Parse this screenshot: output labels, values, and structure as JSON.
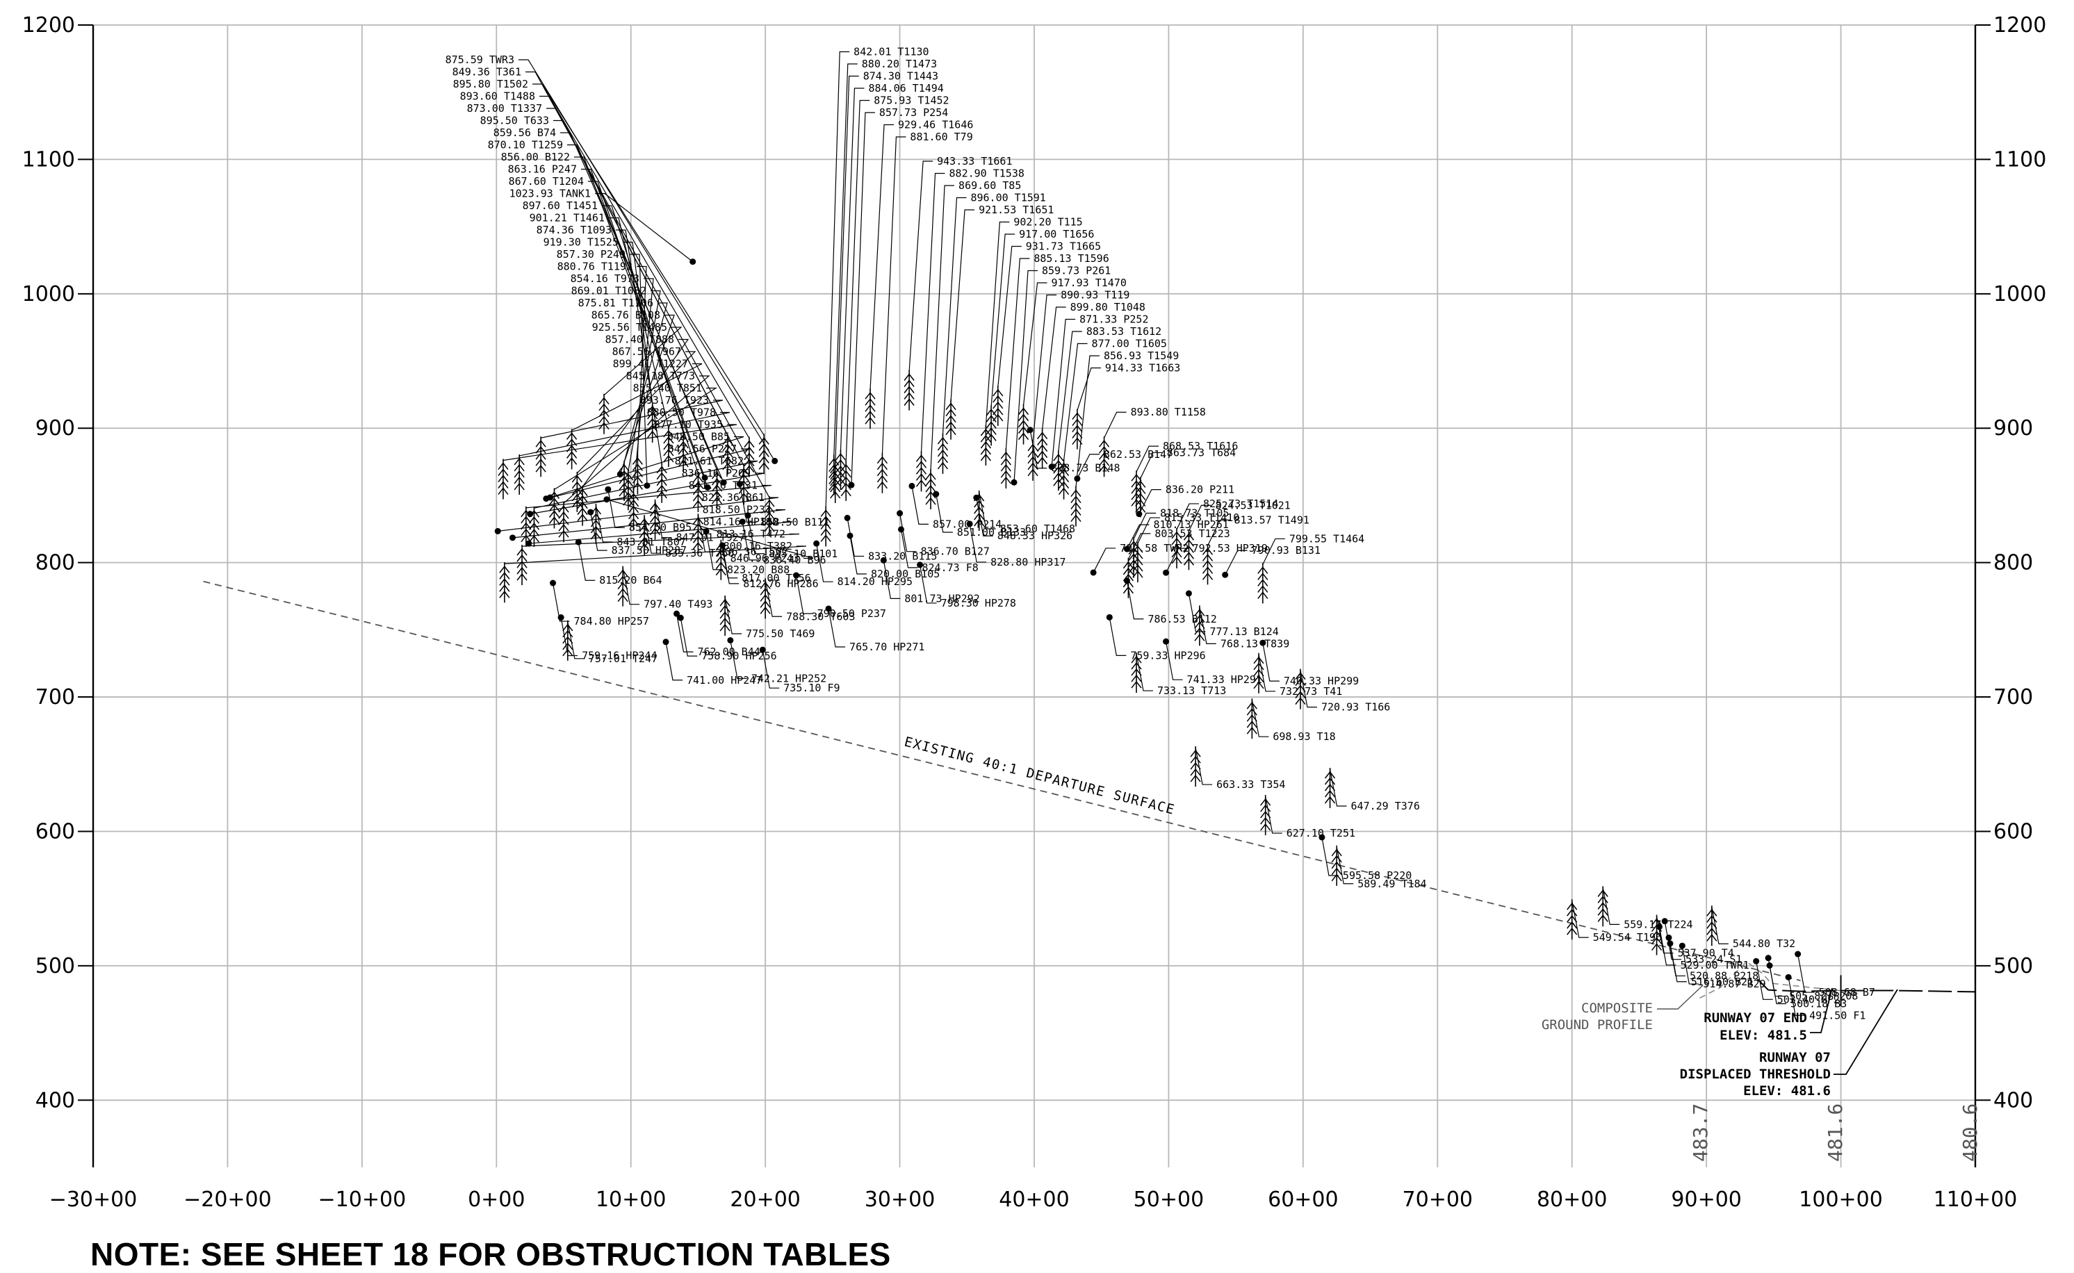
{
  "chart_data": {
    "type": "scatter",
    "x_unit": "station",
    "y_unit": "elevation (ft)",
    "xlim": [
      -3000,
      11000
    ],
    "ylim": [
      350,
      1200
    ],
    "x_ticks": [
      "−30+00",
      "−20+00",
      "−10+00",
      "0+00",
      "10+00",
      "20+00",
      "30+00",
      "40+00",
      "50+00",
      "60+00",
      "70+00",
      "80+00",
      "90+00",
      "100+00",
      "110+00"
    ],
    "y_ticks": [
      "400",
      "500",
      "600",
      "700",
      "800",
      "900",
      "1000",
      "1100",
      "1200"
    ],
    "obstructions": [
      {
        "label": "814.20 HP295",
        "x": 2380,
        "y": 814.2
      },
      {
        "label": "842.01 T1130",
        "x": 2450,
        "y": 842
      },
      {
        "label": "880.20 T1473",
        "x": 2510,
        "y": 880.2
      },
      {
        "label": "874.30 T1443",
        "x": 2520,
        "y": 874.3
      },
      {
        "label": "884.06 T1494",
        "x": 2560,
        "y": 884
      },
      {
        "label": "875.93 T1452",
        "x": 2600,
        "y": 875.9
      },
      {
        "label": "857.73 P254",
        "x": 2640,
        "y": 857.7
      },
      {
        "label": "929.46 T1646",
        "x": 2780,
        "y": 929.5
      },
      {
        "label": "881.60 T79",
        "x": 2870,
        "y": 881.6
      },
      {
        "label": "836.70 B127",
        "x": 3000,
        "y": 836.7
      },
      {
        "label": "943.33 T1661",
        "x": 3070,
        "y": 943.3
      },
      {
        "label": "882.90 T1538",
        "x": 3160,
        "y": 882.9
      },
      {
        "label": "869.60 T85",
        "x": 3230,
        "y": 869.6
      },
      {
        "label": "896.00 T1591",
        "x": 3320,
        "y": 896
      },
      {
        "label": "921.53 T1651",
        "x": 3380,
        "y": 921.5
      },
      {
        "label": "902.20 T115",
        "x": 3640,
        "y": 902.2
      },
      {
        "label": "917.00 T1656",
        "x": 3680,
        "y": 917
      },
      {
        "label": "931.73 T1665",
        "x": 3730,
        "y": 931.7
      },
      {
        "label": "885.13 T1596",
        "x": 3790,
        "y": 885.1
      },
      {
        "label": "859.73 P261",
        "x": 3850,
        "y": 859.7
      },
      {
        "label": "917.93 T1470",
        "x": 3920,
        "y": 917.9
      },
      {
        "label": "890.93 T119",
        "x": 3990,
        "y": 890.9
      },
      {
        "label": "899.80 T1048",
        "x": 4060,
        "y": 899.8
      },
      {
        "label": "871.33 P252",
        "x": 4130,
        "y": 871.3
      },
      {
        "label": "883.53 T1612",
        "x": 4180,
        "y": 883.5
      },
      {
        "label": "877.00 T1605",
        "x": 4220,
        "y": 877
      },
      {
        "label": "856.93 T1549",
        "x": 4310,
        "y": 856.9
      },
      {
        "label": "914.33 T1663",
        "x": 4320,
        "y": 914.3
      },
      {
        "label": "875.59 TWR3",
        "x": 2070,
        "y": 875.6
      },
      {
        "label": "849.36 T361",
        "x": 2030,
        "y": 849.4
      },
      {
        "label": "895.80 T1502",
        "x": 1990,
        "y": 895.8
      },
      {
        "label": "893.60 T1488",
        "x": 1880,
        "y": 893.6
      },
      {
        "label": "873.00 T1337",
        "x": 1840,
        "y": 873
      },
      {
        "label": "895.50 T633",
        "x": 1720,
        "y": 895.5
      },
      {
        "label": "859.56 B74",
        "x": 1690,
        "y": 859.6
      },
      {
        "label": "870.10 T1259",
        "x": 1640,
        "y": 870.1
      },
      {
        "label": "856.00 B122",
        "x": 1570,
        "y": 856
      },
      {
        "label": "863.16 P247",
        "x": 1550,
        "y": 863.2
      },
      {
        "label": "867.60 T1204",
        "x": 1500,
        "y": 867.6
      },
      {
        "label": "1023.93 TANK1",
        "x": 1460,
        "y": 1023.9
      },
      {
        "label": "897.60 T1451",
        "x": 1390,
        "y": 897.6
      },
      {
        "label": "901.21 T1461",
        "x": 1280,
        "y": 901.2
      },
      {
        "label": "874.36 T1093",
        "x": 1230,
        "y": 874.4
      },
      {
        "label": "919.30 T1525",
        "x": 1160,
        "y": 919.3
      },
      {
        "label": "857.30 P249",
        "x": 1120,
        "y": 857.3
      },
      {
        "label": "880.76 T1192",
        "x": 1050,
        "y": 880.8
      },
      {
        "label": "854.16 T973",
        "x": 1020,
        "y": 854.2
      },
      {
        "label": "869.01 T1082",
        "x": 980,
        "y": 869
      },
      {
        "label": "875.81 T1106",
        "x": 950,
        "y": 875.8
      },
      {
        "label": "865.76 B108",
        "x": 920,
        "y": 865.8
      },
      {
        "label": "925.56 T1485",
        "x": 800,
        "y": 925.6
      },
      {
        "label": "857.40 T888",
        "x": 640,
        "y": 857.4
      },
      {
        "label": "867.56 T967",
        "x": 600,
        "y": 867.6
      },
      {
        "label": "899.41 T1227",
        "x": 560,
        "y": 899.4
      },
      {
        "label": "845.18 T773",
        "x": 500,
        "y": 845.2
      },
      {
        "label": "855.40 T851",
        "x": 430,
        "y": 855.4
      },
      {
        "label": "893.76 T923",
        "x": 330,
        "y": 893.8
      },
      {
        "label": "880.50 T978",
        "x": 170,
        "y": 880.5
      },
      {
        "label": "877.10 T935",
        "x": 50,
        "y": 877.1
      },
      {
        "label": "848.50 B85",
        "x": 400,
        "y": 848.5
      },
      {
        "label": "847.56 P227",
        "x": 370,
        "y": 847.6
      },
      {
        "label": "841.61 T682",
        "x": 280,
        "y": 841.6
      },
      {
        "label": "836.16 P209",
        "x": 250,
        "y": 836.2
      },
      {
        "label": "841.76 T631",
        "x": 220,
        "y": 841.8
      },
      {
        "label": "823.36 B61",
        "x": 10,
        "y": 823.4
      },
      {
        "label": "818.50 P231",
        "x": 120,
        "y": 818.5
      },
      {
        "label": "814.16 HP190",
        "x": 240,
        "y": 814.2
      },
      {
        "label": "813.16 T472",
        "x": 190,
        "y": 813.2
      },
      {
        "label": "800.16 T382",
        "x": 60,
        "y": 800.2
      },
      {
        "label": "846.96 P243",
        "x": 820,
        "y": 847
      },
      {
        "label": "784.80 HP257",
        "x": 420,
        "y": 784.8
      },
      {
        "label": "815.20 B64",
        "x": 610,
        "y": 815.2
      },
      {
        "label": "759.16 HP244",
        "x": 480,
        "y": 759.2
      },
      {
        "label": "757.01 T247",
        "x": 530,
        "y": 757
      },
      {
        "label": "837.50 HP287",
        "x": 700,
        "y": 837.5
      },
      {
        "label": "843.81 T807",
        "x": 740,
        "y": 843.8
      },
      {
        "label": "854.50 B95",
        "x": 830,
        "y": 854.5
      },
      {
        "label": "797.40 T493",
        "x": 940,
        "y": 797.4
      },
      {
        "label": "835.36 T766",
        "x": 1100,
        "y": 835.4
      },
      {
        "label": "847.01 T927",
        "x": 1180,
        "y": 847
      },
      {
        "label": "741.00 HP247",
        "x": 1260,
        "y": 741
      },
      {
        "label": "762.00 B44",
        "x": 1340,
        "y": 762
      },
      {
        "label": "758.90 HP256",
        "x": 1370,
        "y": 758.9
      },
      {
        "label": "836.36 T502",
        "x": 1500,
        "y": 836.4
      },
      {
        "label": "823.20 B88",
        "x": 1560,
        "y": 823.2
      },
      {
        "label": "817.00 T756",
        "x": 1670,
        "y": 817
      },
      {
        "label": "742.21 HP252",
        "x": 1740,
        "y": 742.2
      },
      {
        "label": "775.50 T469",
        "x": 1700,
        "y": 775.5
      },
      {
        "label": "812.76 HP286",
        "x": 1680,
        "y": 812.8
      },
      {
        "label": "735.10 F9",
        "x": 1980,
        "y": 735.1
      },
      {
        "label": "858.50 B111",
        "x": 1810,
        "y": 858.5
      },
      {
        "label": "830.40 B96",
        "x": 1830,
        "y": 830.4
      },
      {
        "label": "788.30 T603",
        "x": 2000,
        "y": 788.3
      },
      {
        "label": "835.10 B101",
        "x": 1870,
        "y": 835.1
      },
      {
        "label": "790.50 P237",
        "x": 2230,
        "y": 790.5
      },
      {
        "label": "765.70 HP271",
        "x": 2470,
        "y": 765.7
      },
      {
        "label": "820.00 B105",
        "x": 2630,
        "y": 820
      },
      {
        "label": "833.20 B115",
        "x": 2610,
        "y": 833.2
      },
      {
        "label": "801.73 HP292",
        "x": 2880,
        "y": 801.7
      },
      {
        "label": "824.73 F8",
        "x": 3010,
        "y": 824.7
      },
      {
        "label": "798.30 HP278",
        "x": 3150,
        "y": 798.3
      },
      {
        "label": "857.00 P214",
        "x": 3090,
        "y": 857
      },
      {
        "label": "851.00 B133",
        "x": 3270,
        "y": 851
      },
      {
        "label": "828.80 HP317",
        "x": 3520,
        "y": 828.8
      },
      {
        "label": "848.33 HP326",
        "x": 3570,
        "y": 848.3
      },
      {
        "label": "853.60 T1468",
        "x": 3590,
        "y": 853.6
      },
      {
        "label": "898.73 B148",
        "x": 3970,
        "y": 898.7
      },
      {
        "label": "792.58 TWR2",
        "x": 4440,
        "y": 792.6
      },
      {
        "label": "759.33 HP296",
        "x": 4560,
        "y": 759.3
      },
      {
        "label": "862.53 B147",
        "x": 4320,
        "y": 862.5
      },
      {
        "label": "893.80 T1158",
        "x": 4520,
        "y": 893.8
      },
      {
        "label": "786.53 B112",
        "x": 4690,
        "y": 786.5
      },
      {
        "label": "803.53 T1223",
        "x": 4700,
        "y": 803.5
      },
      {
        "label": "868.53 T1616",
        "x": 4760,
        "y": 868.5
      },
      {
        "label": "863.73 T684",
        "x": 4790,
        "y": 863.7
      },
      {
        "label": "836.20 P211",
        "x": 4780,
        "y": 836.2
      },
      {
        "label": "810.13 HP261",
        "x": 4690,
        "y": 810.1
      },
      {
        "label": "818.73 T105",
        "x": 4740,
        "y": 818.7
      },
      {
        "label": "815.33 T1410",
        "x": 4770,
        "y": 815.3
      },
      {
        "label": "825.73 T1514",
        "x": 5060,
        "y": 825.7
      },
      {
        "label": "824.53 T1021",
        "x": 5150,
        "y": 824.5
      },
      {
        "label": "813.57 T1491",
        "x": 5290,
        "y": 813.6
      },
      {
        "label": "790.93 B131",
        "x": 5420,
        "y": 790.9
      },
      {
        "label": "799.55 T1464",
        "x": 5700,
        "y": 799.6
      },
      {
        "label": "777.13 B124",
        "x": 5150,
        "y": 777.1
      },
      {
        "label": "768.13 T839",
        "x": 5230,
        "y": 768.1
      },
      {
        "label": "792.53 HP319",
        "x": 4980,
        "y": 792.5
      },
      {
        "label": "741.33 HP291",
        "x": 4980,
        "y": 741.3
      },
      {
        "label": "733.13 T713",
        "x": 4760,
        "y": 733.1
      },
      {
        "label": "698.93 T18",
        "x": 5620,
        "y": 698.9
      },
      {
        "label": "740.33 HP299",
        "x": 5700,
        "y": 740.3
      },
      {
        "label": "732.73 T41",
        "x": 5670,
        "y": 732.7
      },
      {
        "label": "720.93 T166",
        "x": 5980,
        "y": 720.9
      },
      {
        "label": "663.33 T354",
        "x": 5200,
        "y": 663.3
      },
      {
        "label": "627.10 T251",
        "x": 5720,
        "y": 627.1
      },
      {
        "label": "647.29 T376",
        "x": 6200,
        "y": 647.3
      },
      {
        "label": "595.58 P220",
        "x": 6140,
        "y": 595.6
      },
      {
        "label": "589.49 T184",
        "x": 6250,
        "y": 589.5
      },
      {
        "label": "533.24 S1",
        "x": 8690,
        "y": 533.2
      },
      {
        "label": "537.90 T4",
        "x": 8630,
        "y": 537.9
      },
      {
        "label": "559.17 T224",
        "x": 8230,
        "y": 559.2
      },
      {
        "label": "549.54 T196",
        "x": 8000,
        "y": 549.5
      },
      {
        "label": "529.00 TWR1",
        "x": 8650,
        "y": 529
      },
      {
        "label": "520.88 P218",
        "x": 8720,
        "y": 520.9
      },
      {
        "label": "516.60 B21",
        "x": 8730,
        "y": 516.6
      },
      {
        "label": "514.87 B29",
        "x": 8820,
        "y": 514.9
      },
      {
        "label": "544.80 T32",
        "x": 9040,
        "y": 544.8
      },
      {
        "label": "503.40 HP2",
        "x": 9370,
        "y": 503.4
      },
      {
        "label": "505.82 P208",
        "x": 9460,
        "y": 505.8
      },
      {
        "label": "500.18 B3",
        "x": 9470,
        "y": 500.2
      },
      {
        "label": "508.68 B7",
        "x": 9680,
        "y": 508.7
      },
      {
        "label": "491.50 F1",
        "x": 9610,
        "y": 491.5
      }
    ]
  },
  "annotations": {
    "departure_surface": "EXISTING 40:1 DEPARTURE SURFACE",
    "ground_line1": "COMPOSITE",
    "ground_line2": "GROUND PROFILE",
    "end_line1": "RUNWAY 07 END",
    "end_line2": "ELEV: 481.5",
    "thr_line1": "RUNWAY 07",
    "thr_line2": "DISPLACED THRESHOLD",
    "thr_line3": "ELEV: 481.6",
    "elev_a": "483.7",
    "elev_b": "481.6",
    "elev_c": "480.6"
  },
  "note": "NOTE: SEE SHEET 18 FOR OBSTRUCTION TABLES"
}
